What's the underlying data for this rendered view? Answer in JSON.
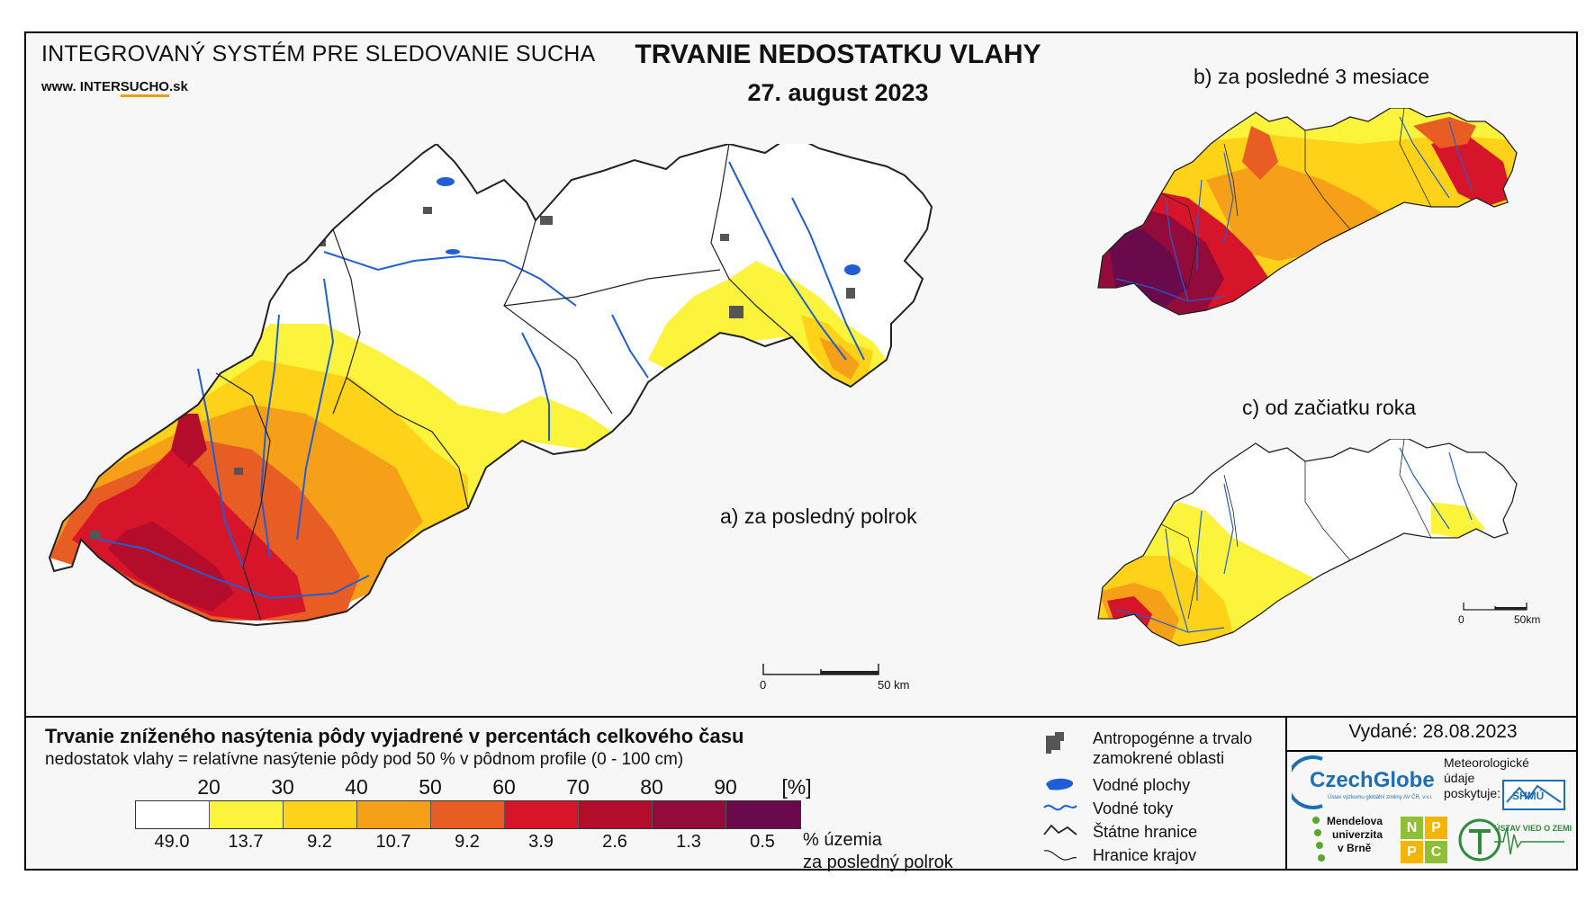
{
  "header": {
    "system_title": "INTEGROVANÝ SYSTÉM PRE SLEDOVANIE SUCHA",
    "website_prefix": "www. INTER",
    "website_accent": "SUCHO",
    "website_suffix": ".sk",
    "map_title": "TRVANIE NEDOSTATKU VLAHY",
    "date": "27. august 2023"
  },
  "panels": {
    "a_label": "a) za posledný polrok",
    "b_label": "b) za posledné 3 mesiace",
    "c_label": "c) od začiatku roka"
  },
  "scalebars": {
    "main": {
      "start": "0",
      "end": "50 km"
    },
    "small": {
      "start": "0",
      "end": "50km"
    }
  },
  "legend": {
    "title": "Trvanie zníženého nasýtenia pôdy vyjadrené v percentách celkového času",
    "subtitle": "nedostatok vlahy = relatívne nasýtenie pôdy pod 50 % v pôdnom profile (0 - 100 cm)",
    "unit": "[%]",
    "ticks": [
      "20",
      "30",
      "40",
      "50",
      "60",
      "70",
      "80",
      "90"
    ],
    "colors": [
      "#ffffff",
      "#fbf33c",
      "#fdd218",
      "#f6a019",
      "#e85d23",
      "#d7152a",
      "#b40c2b",
      "#930b3a",
      "#6a0a4c"
    ],
    "percentages": [
      "49.0",
      "13.7",
      "9.2",
      "10.7",
      "9.2",
      "3.9",
      "2.6",
      "1.3",
      "0.5"
    ],
    "pct_caption_line1": "% územia",
    "pct_caption_line2": "za posledný polrok"
  },
  "symbols": {
    "anthropogenic_line1": "Antropogénne a trvalo",
    "anthropogenic_line2": "zamokrené oblasti",
    "water_areas": "Vodné plochy",
    "water_streams": "Vodné toky",
    "state_border": "Štátne hranice",
    "region_border": "Hranice krajov"
  },
  "credits": {
    "issued": "Vydané: 28.08.2023",
    "czechglobe": "CzechGlobe",
    "czechglobe_sub": "Ústav výzkumu globální změny AV ČR, v.v.i.",
    "meteo_line1": "Meteorologické",
    "meteo_line2": "údaje",
    "meteo_line3": "poskytuje:",
    "shmu": "SHMÚ",
    "mendel_line1": "Mendelova",
    "mendel_line2": "univerzita",
    "mendel_line3": "v Brně",
    "nppc": [
      "N",
      "P",
      "P",
      "C"
    ],
    "uvz": "ÚSTAV VIED O ZEMI"
  },
  "colors": {
    "water": "#1f5fd6",
    "urban": "#555555",
    "border": "#222222"
  }
}
